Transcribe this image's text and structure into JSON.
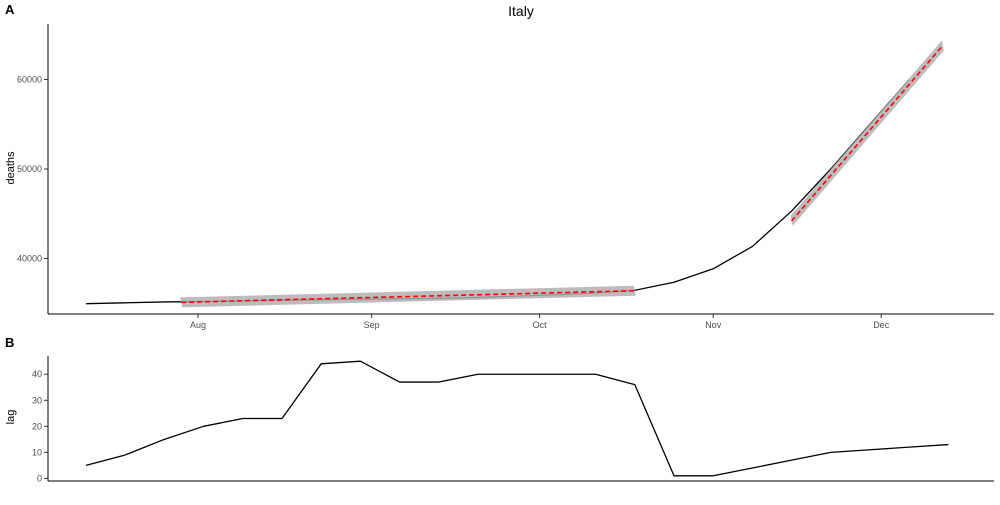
{
  "figure": {
    "panels": [
      "A",
      "B"
    ]
  },
  "chart_data": [
    {
      "panel": "A",
      "type": "line",
      "title": "Italy",
      "xlabel": "",
      "ylabel": "deaths",
      "x_tick_labels": [
        "Aug",
        "Sep",
        "Oct",
        "Nov",
        "Dec"
      ],
      "y_ticks": [
        40000,
        50000,
        60000
      ],
      "ylim": [
        33800,
        66200
      ],
      "series": [
        {
          "color": "#000000",
          "points": [
            [
              "2020-07-12",
              34950
            ],
            [
              "2020-07-19",
              35050
            ],
            [
              "2020-07-26",
              35150
            ],
            [
              "2020-08-02",
              35200
            ],
            [
              "2020-08-09",
              35250
            ],
            [
              "2020-08-16",
              35350
            ],
            [
              "2020-08-23",
              35400
            ],
            [
              "2020-08-30",
              35450
            ],
            [
              "2020-09-06",
              35500
            ],
            [
              "2020-09-13",
              35550
            ],
            [
              "2020-09-20",
              35650
            ],
            [
              "2020-09-27",
              35800
            ],
            [
              "2020-10-04",
              35950
            ],
            [
              "2020-10-11",
              36150
            ],
            [
              "2020-10-18",
              36450
            ],
            [
              "2020-10-25",
              37350
            ],
            [
              "2020-11-01",
              38850
            ],
            [
              "2020-11-08",
              41350
            ],
            [
              "2020-11-15",
              45300
            ],
            [
              "2020-11-22",
              50000
            ],
            [
              "2020-11-29",
              55000
            ],
            [
              "2020-12-06",
              60000
            ]
          ]
        },
        {
          "color": "#ff0000",
          "style": "dashed",
          "ribbon": "#b0b0b0",
          "points": [
            [
              "2020-07-29",
              35100
            ],
            [
              "2020-10-18",
              36400
            ]
          ]
        },
        {
          "color": "#ff0000",
          "style": "dashed",
          "ribbon": "#b0b0b0",
          "points": [
            [
              "2020-11-15",
              44200
            ],
            [
              "2020-12-12",
              63800
            ]
          ]
        }
      ]
    },
    {
      "panel": "B",
      "type": "line",
      "xlabel": "",
      "ylabel": "lag",
      "y_ticks": [
        0,
        10,
        20,
        30,
        40
      ],
      "ylim": [
        -1,
        47
      ],
      "series": [
        {
          "color": "#000000",
          "points": [
            [
              "2020-07-12",
              5
            ],
            [
              "2020-07-19",
              9
            ],
            [
              "2020-07-26",
              15
            ],
            [
              "2020-08-02",
              20
            ],
            [
              "2020-08-09",
              23
            ],
            [
              "2020-08-16",
              23
            ],
            [
              "2020-08-23",
              44
            ],
            [
              "2020-08-30",
              45
            ],
            [
              "2020-09-06",
              37
            ],
            [
              "2020-09-13",
              37
            ],
            [
              "2020-09-20",
              40
            ],
            [
              "2020-09-27",
              40
            ],
            [
              "2020-10-04",
              40
            ],
            [
              "2020-10-11",
              40
            ],
            [
              "2020-10-18",
              36
            ],
            [
              "2020-10-25",
              1
            ],
            [
              "2020-11-01",
              1
            ],
            [
              "2020-11-08",
              4
            ],
            [
              "2020-11-15",
              7
            ],
            [
              "2020-11-22",
              10
            ],
            [
              "2020-11-29",
              11
            ],
            [
              "2020-12-06",
              12
            ],
            [
              "2020-12-13",
              13
            ]
          ]
        }
      ]
    }
  ]
}
